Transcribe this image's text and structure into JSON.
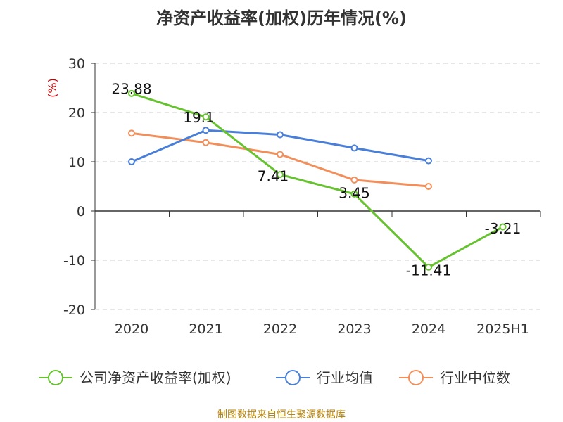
{
  "chart_data": {
    "type": "line",
    "title": "净资产收益率(加权)历年情况(%)",
    "ylabel": "(%)",
    "xlabel": "",
    "categories": [
      "2020",
      "2021",
      "2022",
      "2023",
      "2024",
      "2025H1"
    ],
    "ylim": [
      -20,
      30
    ],
    "yticks": [
      30,
      20,
      10,
      0,
      -10,
      -20
    ],
    "grid": true,
    "legend_position": "bottom",
    "series": [
      {
        "name": "公司净资产收益率(加权)",
        "color": "#66c22e",
        "values": [
          23.88,
          19.1,
          7.41,
          3.45,
          -11.41,
          -3.21
        ],
        "labels": [
          "23.88",
          "19.1",
          "7.41",
          "3.45",
          "-11.41",
          "-3.21"
        ]
      },
      {
        "name": "行业均值",
        "color": "#4a7fd9",
        "values": [
          10.0,
          16.4,
          15.5,
          12.8,
          10.2,
          null
        ]
      },
      {
        "name": "行业中位数",
        "color": "#f28e5a",
        "values": [
          15.8,
          13.9,
          11.5,
          6.3,
          5.0,
          null
        ]
      }
    ]
  },
  "source_text": "制图数据来自恒生聚源数据库"
}
